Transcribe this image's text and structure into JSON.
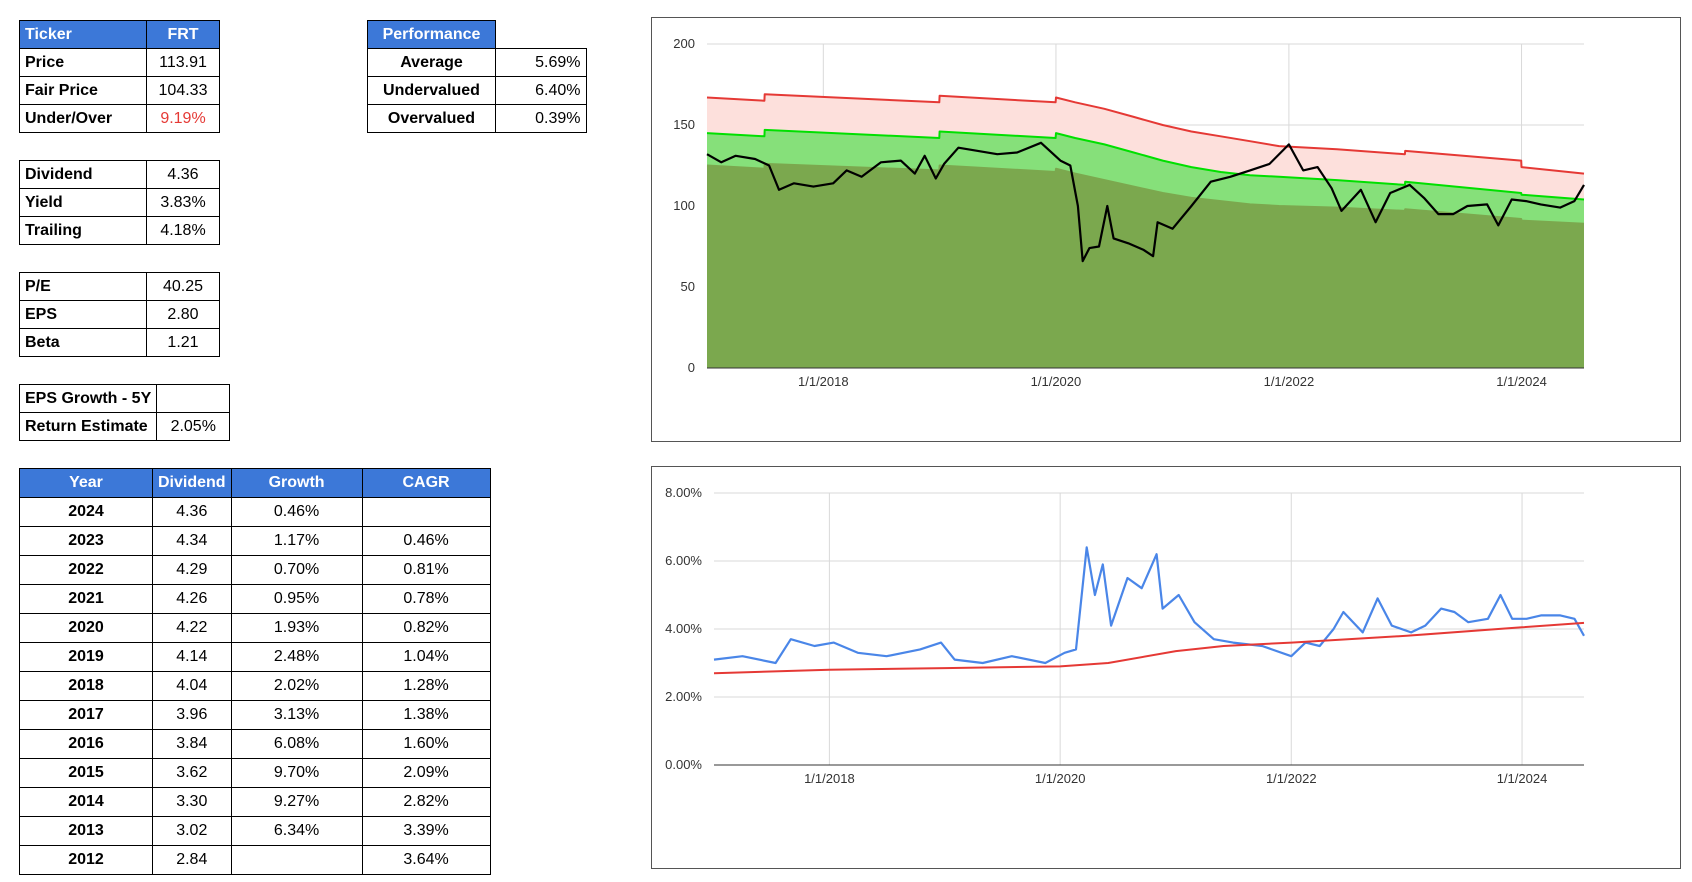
{
  "summary": {
    "header": [
      "Ticker",
      "FRT"
    ],
    "rows": [
      {
        "label": "Price",
        "value": "113.91"
      },
      {
        "label": "Fair Price",
        "value": "104.33"
      },
      {
        "label": "Under/Over",
        "value": "9.19%"
      }
    ],
    "under_over_color": "#e53935"
  },
  "dividend_info": [
    {
      "label": "Dividend",
      "value": "4.36"
    },
    {
      "label": "Yield",
      "value": "3.83%"
    },
    {
      "label": "Trailing",
      "value": "4.18%"
    }
  ],
  "ratios": [
    {
      "label": "P/E",
      "value": "40.25"
    },
    {
      "label": "EPS",
      "value": "2.80"
    },
    {
      "label": "Beta",
      "value": "1.21"
    }
  ],
  "growth": [
    {
      "label": "EPS Growth - 5Y",
      "value": ""
    },
    {
      "label": "Return Estimate",
      "value": "2.05%"
    }
  ],
  "performance": {
    "header": "Performance",
    "rows": [
      {
        "label": "Average",
        "value": "5.69%"
      },
      {
        "label": "Undervalued",
        "value": "6.40%"
      },
      {
        "label": "Overvalued",
        "value": "0.39%"
      }
    ]
  },
  "dividend_history": {
    "headers": [
      "Year",
      "Dividend",
      "Growth",
      "CAGR"
    ],
    "rows": [
      {
        "year": "2024",
        "dividend": "4.36",
        "growth": "0.46%",
        "cagr": ""
      },
      {
        "year": "2023",
        "dividend": "4.34",
        "growth": "1.17%",
        "cagr": "0.46%"
      },
      {
        "year": "2022",
        "dividend": "4.29",
        "growth": "0.70%",
        "cagr": "0.81%"
      },
      {
        "year": "2021",
        "dividend": "4.26",
        "growth": "0.95%",
        "cagr": "0.78%"
      },
      {
        "year": "2020",
        "dividend": "4.22",
        "growth": "1.93%",
        "cagr": "0.82%"
      },
      {
        "year": "2019",
        "dividend": "4.14",
        "growth": "2.48%",
        "cagr": "1.04%"
      },
      {
        "year": "2018",
        "dividend": "4.04",
        "growth": "2.02%",
        "cagr": "1.28%"
      },
      {
        "year": "2017",
        "dividend": "3.96",
        "growth": "3.13%",
        "cagr": "1.38%"
      },
      {
        "year": "2016",
        "dividend": "3.84",
        "growth": "6.08%",
        "cagr": "1.60%"
      },
      {
        "year": "2015",
        "dividend": "3.62",
        "growth": "9.70%",
        "cagr": "2.09%"
      },
      {
        "year": "2014",
        "dividend": "3.30",
        "growth": "9.27%",
        "cagr": "2.82%"
      },
      {
        "year": "2013",
        "dividend": "3.02",
        "growth": "6.34%",
        "cagr": "3.39%"
      },
      {
        "year": "2012",
        "dividend": "2.84",
        "growth": "",
        "cagr": "3.64%"
      }
    ]
  },
  "chart_data": [
    {
      "type": "area",
      "x_range": [
        "2017-01-01",
        "2024-07-15"
      ],
      "x_ticks": [
        "1/1/2018",
        "1/1/2020",
        "1/1/2022",
        "1/1/2024"
      ],
      "x_tick_dates": [
        "2018-01-01",
        "2020-01-01",
        "2022-01-01",
        "2024-01-01"
      ],
      "ylim": [
        0,
        200
      ],
      "y_ticks": [
        0,
        50,
        100,
        150,
        200
      ],
      "y_tick_labels": [
        "0",
        "50",
        "100",
        "150",
        "200"
      ],
      "grid": true,
      "series": [
        {
          "role": "overvalued-band-top",
          "color": "#e53935",
          "fill": "#fde0dc",
          "points": [
            [
              "2017-01-01",
              167
            ],
            [
              "2017-06-30",
              165
            ],
            [
              "2017-07-01",
              169
            ],
            [
              "2018-12-31",
              164
            ],
            [
              "2019-01-01",
              168
            ],
            [
              "2019-12-31",
              164
            ],
            [
              "2020-01-01",
              167
            ],
            [
              "2020-03-01",
              164
            ],
            [
              "2020-06-01",
              160
            ],
            [
              "2020-09-01",
              155
            ],
            [
              "2020-12-01",
              150
            ],
            [
              "2021-03-01",
              146
            ],
            [
              "2021-06-01",
              143
            ],
            [
              "2021-09-01",
              140
            ],
            [
              "2021-12-01",
              137
            ],
            [
              "2022-06-01",
              135
            ],
            [
              "2022-12-31",
              132
            ],
            [
              "2023-01-01",
              134
            ],
            [
              "2023-12-31",
              128
            ],
            [
              "2024-01-01",
              124
            ],
            [
              "2024-07-15",
              120
            ]
          ]
        },
        {
          "role": "fair-value-band-top",
          "color": "#00e000",
          "fill": "#86e07a",
          "points": [
            [
              "2017-01-01",
              145
            ],
            [
              "2017-06-30",
              143
            ],
            [
              "2017-07-01",
              147
            ],
            [
              "2018-12-31",
              142
            ],
            [
              "2019-01-01",
              146
            ],
            [
              "2019-12-31",
              142
            ],
            [
              "2020-01-01",
              145
            ],
            [
              "2020-03-01",
              142
            ],
            [
              "2020-06-01",
              138
            ],
            [
              "2020-09-01",
              133
            ],
            [
              "2020-12-01",
              128
            ],
            [
              "2021-03-01",
              124
            ],
            [
              "2021-06-01",
              121
            ],
            [
              "2021-09-01",
              119
            ],
            [
              "2021-12-01",
              118
            ],
            [
              "2022-06-01",
              116
            ],
            [
              "2022-12-31",
              113
            ],
            [
              "2023-01-01",
              115
            ],
            [
              "2023-12-31",
              108
            ],
            [
              "2024-01-01",
              107
            ],
            [
              "2024-07-15",
              104
            ]
          ]
        },
        {
          "role": "undervalued-band-top",
          "color": "#7ba84e",
          "fill": "#7ba84e",
          "points": [
            [
              "2017-01-01",
              125
            ],
            [
              "2017-06-30",
              123
            ],
            [
              "2017-07-01",
              126
            ],
            [
              "2018-12-31",
              122
            ],
            [
              "2019-01-01",
              125
            ],
            [
              "2019-12-31",
              121
            ],
            [
              "2020-01-01",
              123
            ],
            [
              "2020-03-01",
              120
            ],
            [
              "2020-06-01",
              116
            ],
            [
              "2020-09-01",
              112
            ],
            [
              "2020-12-01",
              108
            ],
            [
              "2021-03-01",
              105
            ],
            [
              "2021-06-01",
              103
            ],
            [
              "2021-09-01",
              101
            ],
            [
              "2021-12-01",
              100
            ],
            [
              "2022-06-01",
              99
            ],
            [
              "2022-12-31",
              97
            ],
            [
              "2023-01-01",
              98
            ],
            [
              "2023-12-31",
              92
            ],
            [
              "2024-01-01",
              91
            ],
            [
              "2024-07-15",
              89
            ]
          ]
        },
        {
          "role": "price",
          "color": "#000000",
          "points": [
            [
              "2017-01-01",
              132
            ],
            [
              "2017-02-15",
              127
            ],
            [
              "2017-04-01",
              131
            ],
            [
              "2017-06-01",
              129
            ],
            [
              "2017-07-15",
              125
            ],
            [
              "2017-08-15",
              110
            ],
            [
              "2017-10-01",
              114
            ],
            [
              "2017-12-01",
              112
            ],
            [
              "2018-02-01",
              114
            ],
            [
              "2018-03-15",
              122
            ],
            [
              "2018-05-01",
              118
            ],
            [
              "2018-07-01",
              127
            ],
            [
              "2018-09-01",
              128
            ],
            [
              "2018-10-15",
              120
            ],
            [
              "2018-11-15",
              131
            ],
            [
              "2018-12-20",
              117
            ],
            [
              "2019-01-15",
              126
            ],
            [
              "2019-03-01",
              136
            ],
            [
              "2019-05-01",
              134
            ],
            [
              "2019-07-01",
              132
            ],
            [
              "2019-09-01",
              133
            ],
            [
              "2019-11-15",
              139
            ],
            [
              "2020-01-15",
              128
            ],
            [
              "2020-02-15",
              125
            ],
            [
              "2020-03-10",
              100
            ],
            [
              "2020-03-25",
              66
            ],
            [
              "2020-04-15",
              74
            ],
            [
              "2020-05-15",
              75
            ],
            [
              "2020-06-10",
              100
            ],
            [
              "2020-06-30",
              80
            ],
            [
              "2020-08-15",
              77
            ],
            [
              "2020-10-01",
              73
            ],
            [
              "2020-11-01",
              69
            ],
            [
              "2020-11-15",
              90
            ],
            [
              "2021-01-01",
              86
            ],
            [
              "2021-03-01",
              100
            ],
            [
              "2021-05-01",
              115
            ],
            [
              "2021-07-01",
              118
            ],
            [
              "2021-09-01",
              122
            ],
            [
              "2021-11-01",
              126
            ],
            [
              "2022-01-01",
              138
            ],
            [
              "2022-02-15",
              122
            ],
            [
              "2022-04-01",
              124
            ],
            [
              "2022-05-15",
              111
            ],
            [
              "2022-06-15",
              97
            ],
            [
              "2022-08-15",
              110
            ],
            [
              "2022-09-30",
              90
            ],
            [
              "2022-11-15",
              108
            ],
            [
              "2023-01-15",
              113
            ],
            [
              "2023-03-01",
              105
            ],
            [
              "2023-04-15",
              95
            ],
            [
              "2023-06-01",
              95
            ],
            [
              "2023-07-15",
              100
            ],
            [
              "2023-09-15",
              101
            ],
            [
              "2023-10-20",
              88
            ],
            [
              "2023-12-01",
              104
            ],
            [
              "2024-01-15",
              103
            ],
            [
              "2024-03-01",
              101
            ],
            [
              "2024-05-01",
              99
            ],
            [
              "2024-06-15",
              103
            ],
            [
              "2024-07-15",
              113
            ]
          ]
        }
      ]
    },
    {
      "type": "line",
      "x_range": [
        "2017-01-01",
        "2024-07-15"
      ],
      "x_ticks": [
        "1/1/2018",
        "1/1/2020",
        "1/1/2022",
        "1/1/2024"
      ],
      "x_tick_dates": [
        "2018-01-01",
        "2020-01-01",
        "2022-01-01",
        "2024-01-01"
      ],
      "ylim": [
        0,
        8
      ],
      "y_ticks": [
        0,
        2,
        4,
        6,
        8
      ],
      "y_tick_labels": [
        "0.00%",
        "2.00%",
        "4.00%",
        "6.00%",
        "8.00%"
      ],
      "grid": true,
      "series": [
        {
          "role": "dividend-yield",
          "color": "#4a86e8",
          "points": [
            [
              "2017-01-01",
              3.1
            ],
            [
              "2017-04-01",
              3.2
            ],
            [
              "2017-07-15",
              3.0
            ],
            [
              "2017-09-01",
              3.7
            ],
            [
              "2017-11-15",
              3.5
            ],
            [
              "2018-01-15",
              3.6
            ],
            [
              "2018-04-01",
              3.3
            ],
            [
              "2018-07-01",
              3.2
            ],
            [
              "2018-10-15",
              3.4
            ],
            [
              "2018-12-20",
              3.6
            ],
            [
              "2019-02-01",
              3.1
            ],
            [
              "2019-05-01",
              3.0
            ],
            [
              "2019-08-01",
              3.2
            ],
            [
              "2019-11-15",
              3.0
            ],
            [
              "2020-01-15",
              3.3
            ],
            [
              "2020-02-20",
              3.4
            ],
            [
              "2020-03-25",
              6.4
            ],
            [
              "2020-04-20",
              5.0
            ],
            [
              "2020-05-15",
              5.9
            ],
            [
              "2020-06-10",
              4.1
            ],
            [
              "2020-08-01",
              5.5
            ],
            [
              "2020-09-15",
              5.2
            ],
            [
              "2020-11-01",
              6.2
            ],
            [
              "2020-11-20",
              4.6
            ],
            [
              "2021-01-10",
              5.0
            ],
            [
              "2021-03-01",
              4.2
            ],
            [
              "2021-05-01",
              3.7
            ],
            [
              "2021-07-01",
              3.6
            ],
            [
              "2021-10-01",
              3.5
            ],
            [
              "2022-01-01",
              3.2
            ],
            [
              "2022-02-15",
              3.6
            ],
            [
              "2022-04-01",
              3.5
            ],
            [
              "2022-05-15",
              4.0
            ],
            [
              "2022-06-15",
              4.5
            ],
            [
              "2022-08-15",
              3.9
            ],
            [
              "2022-10-01",
              4.9
            ],
            [
              "2022-11-15",
              4.1
            ],
            [
              "2023-01-15",
              3.9
            ],
            [
              "2023-03-01",
              4.1
            ],
            [
              "2023-04-20",
              4.6
            ],
            [
              "2023-06-01",
              4.5
            ],
            [
              "2023-07-15",
              4.2
            ],
            [
              "2023-09-15",
              4.3
            ],
            [
              "2023-10-25",
              5.0
            ],
            [
              "2023-12-01",
              4.3
            ],
            [
              "2024-01-15",
              4.3
            ],
            [
              "2024-03-01",
              4.4
            ],
            [
              "2024-05-01",
              4.4
            ],
            [
              "2024-06-15",
              4.3
            ],
            [
              "2024-07-15",
              3.8
            ]
          ]
        },
        {
          "role": "trailing-average-yield",
          "color": "#e53935",
          "points": [
            [
              "2017-01-01",
              2.7
            ],
            [
              "2018-01-01",
              2.8
            ],
            [
              "2019-01-01",
              2.85
            ],
            [
              "2020-01-01",
              2.9
            ],
            [
              "2020-06-01",
              3.0
            ],
            [
              "2021-01-01",
              3.35
            ],
            [
              "2021-06-01",
              3.5
            ],
            [
              "2022-01-01",
              3.6
            ],
            [
              "2023-01-01",
              3.8
            ],
            [
              "2024-01-01",
              4.05
            ],
            [
              "2024-07-15",
              4.18
            ]
          ]
        }
      ]
    }
  ]
}
